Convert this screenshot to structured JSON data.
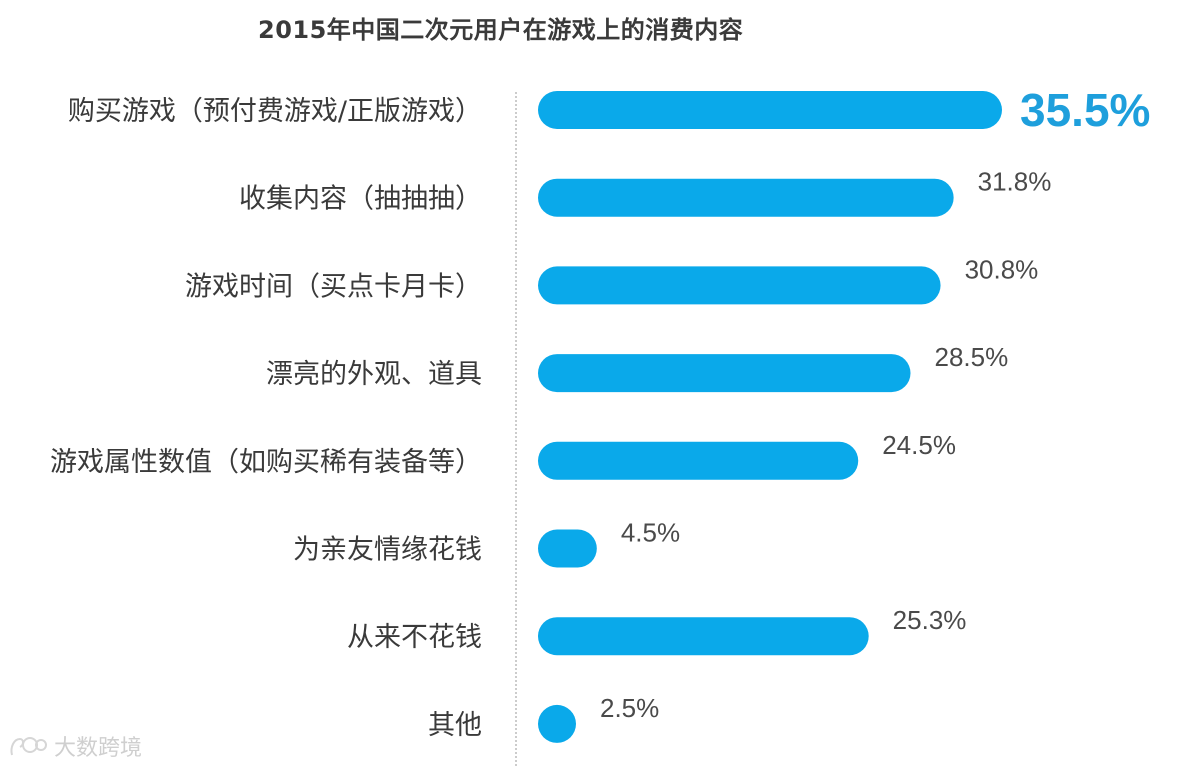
{
  "chart_data": {
    "type": "bar",
    "orientation": "horizontal",
    "title": "2015年中国二次元用户在游戏上的消费内容",
    "categories": [
      "购买游戏（预付费游戏/正版游戏）",
      "收集内容（抽抽抽）",
      "游戏时间（买点卡月卡）",
      "漂亮的外观、道具",
      "游戏属性数值（如购买稀有装备等）",
      "为亲友情缘花钱",
      "从来不花钱",
      "其他"
    ],
    "values": [
      35.5,
      31.8,
      30.8,
      28.5,
      24.5,
      4.5,
      25.3,
      2.5
    ],
    "value_labels": [
      "35.5%",
      "31.8%",
      "30.8%",
      "28.5%",
      "24.5%",
      "4.5%",
      "25.3%",
      "2.5%"
    ],
    "highlight_index": 0,
    "xlim": [
      0,
      35.5
    ],
    "bar_color": "#0aa9ea",
    "highlight_label_color": "#1e9fdc",
    "grid": false
  },
  "watermark": {
    "text": "大数跨境"
  }
}
